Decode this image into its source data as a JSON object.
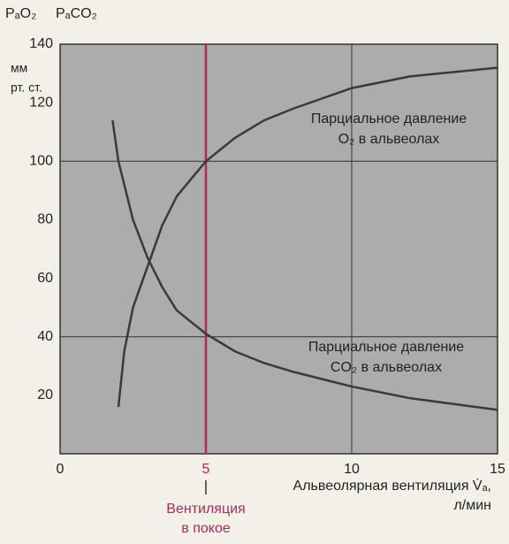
{
  "chart_data": {
    "type": "line",
    "y_headers": [
      "PₐO₂",
      "PₐCO₂"
    ],
    "y_unit": [
      "мм",
      "рт. ст."
    ],
    "x_label": [
      "Альвеолярная вентиляция V̇ₐ,",
      "л/мин"
    ],
    "xlim": [
      0,
      15
    ],
    "xticks": [
      0,
      5,
      10,
      15
    ],
    "ylim": [
      0,
      140
    ],
    "yticks": [
      20,
      40,
      60,
      80,
      100,
      120,
      140
    ],
    "grid_x": [
      10
    ],
    "grid_y": [
      40,
      100
    ],
    "rest_x": 5,
    "rest_color": "#b0285e",
    "rest_label": [
      "Вентиляция",
      "в покое"
    ],
    "series": [
      {
        "name": "O2",
        "color": "#3a3a3a",
        "label": [
          "Парциальное давление",
          "O₂ в альвеолах"
        ],
        "x": [
          2,
          2.2,
          2.5,
          3,
          3.5,
          4,
          5,
          6,
          7,
          8,
          10,
          12,
          15
        ],
        "values": [
          16,
          35,
          50,
          64,
          78,
          88,
          100,
          108,
          114,
          118,
          125,
          129,
          132
        ]
      },
      {
        "name": "CO2",
        "color": "#3a3a3a",
        "label": [
          "Парциальное давление",
          "CO₂ в альвеолах"
        ],
        "x": [
          1.8,
          2,
          2.5,
          3,
          3.5,
          4,
          5,
          6,
          7,
          8,
          10,
          12,
          15
        ],
        "values": [
          114,
          100,
          80,
          67,
          57,
          49,
          41,
          35,
          31,
          28,
          23,
          19,
          15
        ]
      }
    ]
  }
}
